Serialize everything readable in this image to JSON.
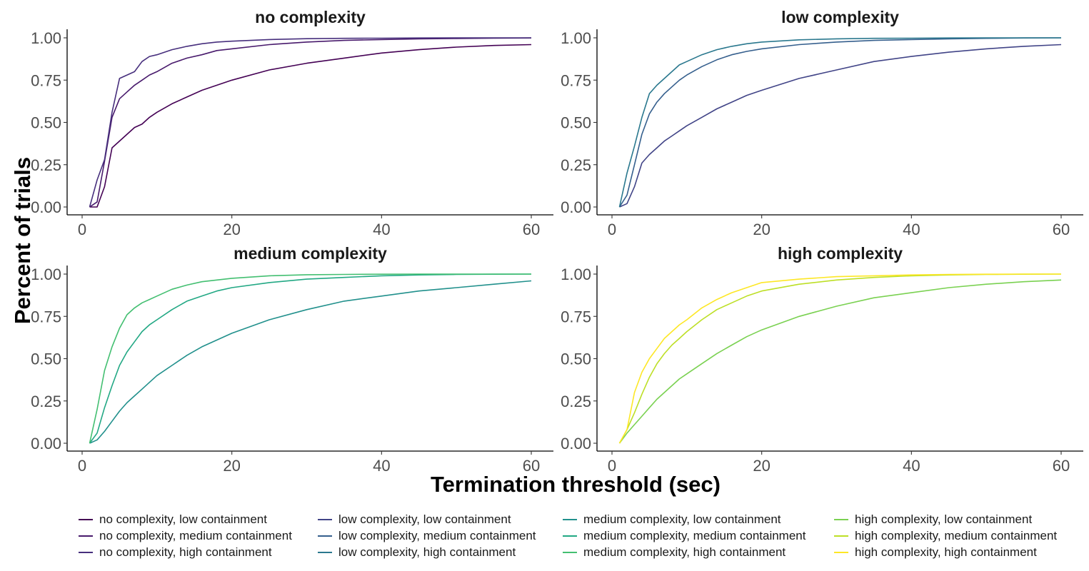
{
  "chart_data": {
    "type": "line",
    "ylabel": "Percent of trials",
    "xlabel": "Termination threshold (sec)",
    "xlim": [
      1,
      60
    ],
    "ylim": [
      0,
      1
    ],
    "x_ticks": [
      0,
      20,
      40,
      60
    ],
    "x_tick_labels": [
      "0",
      "20",
      "40",
      "60"
    ],
    "y_ticks": [
      0,
      0.25,
      0.5,
      0.75,
      1
    ],
    "y_tick_labels": [
      "0.00",
      "0.25",
      "0.50",
      "0.75",
      "1.00"
    ],
    "grid": false,
    "legend_position": "bottom",
    "panels": [
      {
        "title": "no complexity",
        "series": [
          {
            "name": "no complexity, low containment",
            "color": "#440154",
            "x": [
              1,
              2,
              3,
              4,
              5,
              6,
              7,
              8,
              9,
              10,
              12,
              14,
              16,
              18,
              20,
              25,
              30,
              35,
              40,
              45,
              50,
              55,
              60
            ],
            "y": [
              0,
              0,
              0.12,
              0.35,
              0.39,
              0.43,
              0.47,
              0.49,
              0.53,
              0.56,
              0.61,
              0.65,
              0.69,
              0.72,
              0.75,
              0.81,
              0.85,
              0.88,
              0.91,
              0.93,
              0.945,
              0.955,
              0.96
            ]
          },
          {
            "name": "no complexity, medium containment",
            "color": "#481A6C",
            "x": [
              1,
              2,
              3,
              4,
              5,
              6,
              7,
              8,
              9,
              10,
              12,
              14,
              16,
              18,
              20,
              25,
              30,
              35,
              40,
              45,
              50,
              55,
              60
            ],
            "y": [
              0,
              0.03,
              0.27,
              0.53,
              0.64,
              0.68,
              0.72,
              0.75,
              0.78,
              0.8,
              0.85,
              0.88,
              0.9,
              0.925,
              0.935,
              0.96,
              0.975,
              0.985,
              0.99,
              0.994,
              0.996,
              0.998,
              0.999
            ]
          },
          {
            "name": "no complexity, high containment",
            "color": "#472F7D",
            "x": [
              1,
              2,
              3,
              4,
              5,
              6,
              7,
              8,
              9,
              10,
              12,
              14,
              16,
              18,
              20,
              25,
              30,
              35,
              40,
              45,
              50,
              55,
              60
            ],
            "y": [
              0,
              0.16,
              0.28,
              0.56,
              0.76,
              0.78,
              0.8,
              0.86,
              0.89,
              0.9,
              0.93,
              0.95,
              0.965,
              0.975,
              0.98,
              0.99,
              0.995,
              0.997,
              0.998,
              0.999,
              1,
              1,
              1
            ]
          }
        ]
      },
      {
        "title": "low complexity",
        "series": [
          {
            "name": "low complexity, low containment",
            "color": "#414487",
            "x": [
              1,
              2,
              3,
              4,
              5,
              6,
              7,
              8,
              9,
              10,
              12,
              14,
              16,
              18,
              20,
              25,
              30,
              35,
              40,
              45,
              50,
              55,
              60
            ],
            "y": [
              0,
              0.02,
              0.12,
              0.26,
              0.31,
              0.35,
              0.39,
              0.42,
              0.45,
              0.48,
              0.53,
              0.58,
              0.62,
              0.66,
              0.69,
              0.76,
              0.81,
              0.86,
              0.89,
              0.915,
              0.935,
              0.95,
              0.96
            ]
          },
          {
            "name": "low complexity, medium containment",
            "color": "#355F8D",
            "x": [
              1,
              2,
              3,
              4,
              5,
              6,
              7,
              8,
              9,
              10,
              12,
              14,
              16,
              18,
              20,
              25,
              30,
              35,
              40,
              45,
              50,
              55,
              60
            ],
            "y": [
              0,
              0.07,
              0.25,
              0.43,
              0.55,
              0.62,
              0.67,
              0.71,
              0.75,
              0.78,
              0.83,
              0.87,
              0.9,
              0.92,
              0.935,
              0.96,
              0.975,
              0.985,
              0.99,
              0.994,
              0.997,
              0.999,
              1
            ]
          },
          {
            "name": "low complexity, high containment",
            "color": "#2A788E",
            "x": [
              1,
              2,
              3,
              4,
              5,
              6,
              7,
              8,
              9,
              10,
              12,
              14,
              16,
              18,
              20,
              25,
              30,
              35,
              40,
              45,
              50,
              55,
              60
            ],
            "y": [
              0,
              0.2,
              0.36,
              0.53,
              0.67,
              0.72,
              0.76,
              0.8,
              0.84,
              0.86,
              0.9,
              0.93,
              0.95,
              0.965,
              0.975,
              0.988,
              0.994,
              0.997,
              0.998,
              0.999,
              1,
              1,
              1
            ]
          }
        ]
      },
      {
        "title": "medium complexity",
        "series": [
          {
            "name": "medium complexity, low containment",
            "color": "#21908C",
            "x": [
              1,
              2,
              3,
              4,
              5,
              6,
              7,
              8,
              9,
              10,
              12,
              14,
              16,
              18,
              20,
              25,
              30,
              35,
              40,
              45,
              50,
              55,
              60
            ],
            "y": [
              0,
              0.02,
              0.07,
              0.13,
              0.19,
              0.24,
              0.28,
              0.32,
              0.36,
              0.4,
              0.46,
              0.52,
              0.57,
              0.61,
              0.65,
              0.73,
              0.79,
              0.84,
              0.87,
              0.9,
              0.92,
              0.94,
              0.96
            ]
          },
          {
            "name": "medium complexity, medium containment",
            "color": "#22A884",
            "x": [
              1,
              2,
              3,
              4,
              5,
              6,
              7,
              8,
              9,
              10,
              12,
              14,
              16,
              18,
              20,
              25,
              30,
              35,
              40,
              45,
              50,
              55,
              60
            ],
            "y": [
              0,
              0.06,
              0.21,
              0.34,
              0.46,
              0.54,
              0.6,
              0.66,
              0.7,
              0.73,
              0.79,
              0.84,
              0.87,
              0.9,
              0.92,
              0.95,
              0.97,
              0.98,
              0.99,
              0.995,
              0.998,
              0.999,
              1
            ]
          },
          {
            "name": "medium complexity, high containment",
            "color": "#43BF71",
            "x": [
              1,
              2,
              3,
              4,
              5,
              6,
              7,
              8,
              9,
              10,
              12,
              14,
              16,
              18,
              20,
              25,
              30,
              35,
              40,
              45,
              50,
              55,
              60
            ],
            "y": [
              0,
              0.2,
              0.43,
              0.57,
              0.68,
              0.76,
              0.8,
              0.83,
              0.85,
              0.87,
              0.91,
              0.935,
              0.955,
              0.965,
              0.975,
              0.99,
              0.996,
              0.998,
              0.999,
              1,
              1,
              1,
              1
            ]
          }
        ]
      },
      {
        "title": "high complexity",
        "series": [
          {
            "name": "high complexity, low containment",
            "color": "#7AD151",
            "x": [
              1,
              2,
              3,
              4,
              5,
              6,
              7,
              8,
              9,
              10,
              12,
              14,
              16,
              18,
              20,
              25,
              30,
              35,
              40,
              45,
              50,
              55,
              60
            ],
            "y": [
              0,
              0.06,
              0.11,
              0.16,
              0.21,
              0.26,
              0.3,
              0.34,
              0.38,
              0.41,
              0.47,
              0.53,
              0.58,
              0.63,
              0.67,
              0.75,
              0.81,
              0.86,
              0.89,
              0.92,
              0.94,
              0.955,
              0.965
            ]
          },
          {
            "name": "high complexity, medium containment",
            "color": "#BDDF26",
            "x": [
              1,
              2,
              3,
              4,
              5,
              6,
              7,
              8,
              9,
              10,
              12,
              14,
              16,
              18,
              20,
              25,
              30,
              35,
              40,
              45,
              50,
              55,
              60
            ],
            "y": [
              0,
              0.08,
              0.18,
              0.29,
              0.39,
              0.47,
              0.53,
              0.58,
              0.62,
              0.66,
              0.73,
              0.79,
              0.83,
              0.87,
              0.9,
              0.94,
              0.965,
              0.98,
              0.99,
              0.995,
              0.998,
              0.999,
              1
            ]
          },
          {
            "name": "high complexity, high containment",
            "color": "#FDE725",
            "x": [
              1,
              2,
              3,
              4,
              5,
              6,
              7,
              8,
              9,
              10,
              12,
              14,
              16,
              18,
              20,
              25,
              30,
              35,
              40,
              45,
              50,
              55,
              60
            ],
            "y": [
              0,
              0.08,
              0.3,
              0.42,
              0.5,
              0.56,
              0.62,
              0.66,
              0.7,
              0.73,
              0.8,
              0.85,
              0.89,
              0.92,
              0.95,
              0.97,
              0.985,
              0.99,
              0.995,
              0.998,
              0.999,
              1,
              1
            ]
          }
        ]
      }
    ]
  }
}
